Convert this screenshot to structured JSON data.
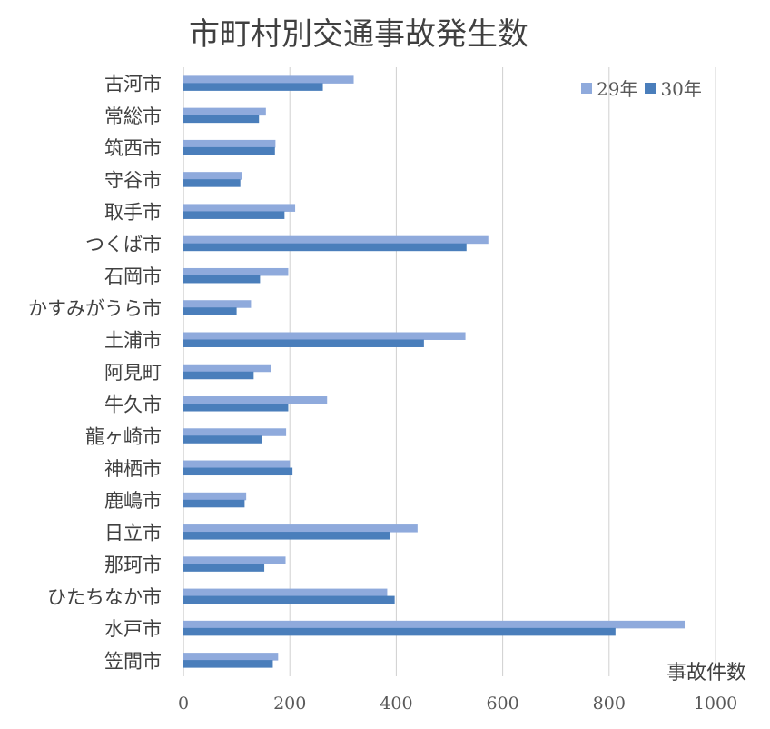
{
  "chart_data": {
    "type": "bar",
    "orientation": "horizontal",
    "title": "市町村別交通事故発生数",
    "xlabel": "事故件数",
    "ylabel": "",
    "xlim": [
      0,
      1000
    ],
    "xticks": [
      0,
      200,
      400,
      600,
      800,
      1000
    ],
    "grid": true,
    "legend_position": "top-right",
    "categories": [
      "古河市",
      "常総市",
      "筑西市",
      "守谷市",
      "取手市",
      "つくば市",
      "石岡市",
      "かすみがうら市",
      "土浦市",
      "阿見町",
      "牛久市",
      "龍ヶ崎市",
      "神栖市",
      "鹿嶋市",
      "日立市",
      "那珂市",
      "ひたちなか市",
      "水戸市",
      "笠間市"
    ],
    "series": [
      {
        "name": "29年",
        "color": "#8faadc",
        "values": [
          320,
          155,
          173,
          110,
          210,
          573,
          197,
          127,
          530,
          165,
          270,
          193,
          200,
          118,
          440,
          192,
          383,
          942,
          178
        ]
      },
      {
        "name": "30年",
        "color": "#4a7ebb",
        "values": [
          262,
          142,
          172,
          107,
          190,
          532,
          144,
          100,
          452,
          132,
          197,
          148,
          205,
          115,
          388,
          152,
          397,
          812,
          168
        ]
      }
    ]
  }
}
